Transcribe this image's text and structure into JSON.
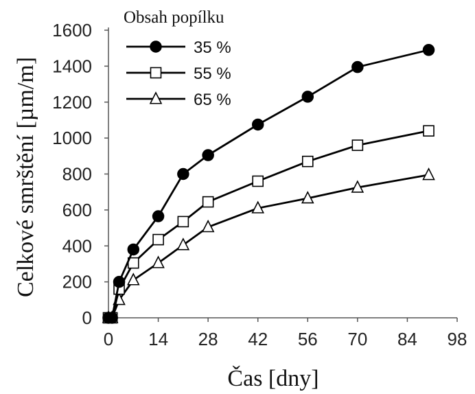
{
  "chart_data": {
    "type": "line",
    "title": "",
    "xlabel": "Čas [dny]",
    "ylabel": "Celkové smrštění [µm/m]",
    "xlim": [
      0,
      98
    ],
    "ylim": [
      0,
      1600
    ],
    "xticks": [
      0,
      14,
      28,
      42,
      56,
      70,
      84,
      98
    ],
    "yticks": [
      0,
      200,
      400,
      600,
      800,
      1000,
      1200,
      1400,
      1600
    ],
    "grid": false,
    "legend": {
      "title": "Obsah popílku",
      "placement": "top-left"
    },
    "series": [
      {
        "name": "35 %",
        "marker": "circle-filled",
        "x": [
          0,
          1,
          3,
          7,
          14,
          21,
          28,
          42,
          56,
          70,
          90
        ],
        "y": [
          0,
          0,
          200,
          380,
          565,
          800,
          905,
          1075,
          1230,
          1395,
          1490
        ]
      },
      {
        "name": "55 %",
        "marker": "square-open",
        "x": [
          0,
          1,
          3,
          7,
          14,
          21,
          28,
          42,
          56,
          70,
          90
        ],
        "y": [
          0,
          0,
          160,
          305,
          435,
          535,
          645,
          760,
          870,
          960,
          1040
        ]
      },
      {
        "name": "65 %",
        "marker": "triangle-open",
        "x": [
          0,
          1,
          3,
          7,
          14,
          21,
          28,
          42,
          56,
          70,
          90
        ],
        "y": [
          0,
          0,
          100,
          210,
          305,
          405,
          505,
          610,
          665,
          725,
          795
        ]
      }
    ]
  }
}
